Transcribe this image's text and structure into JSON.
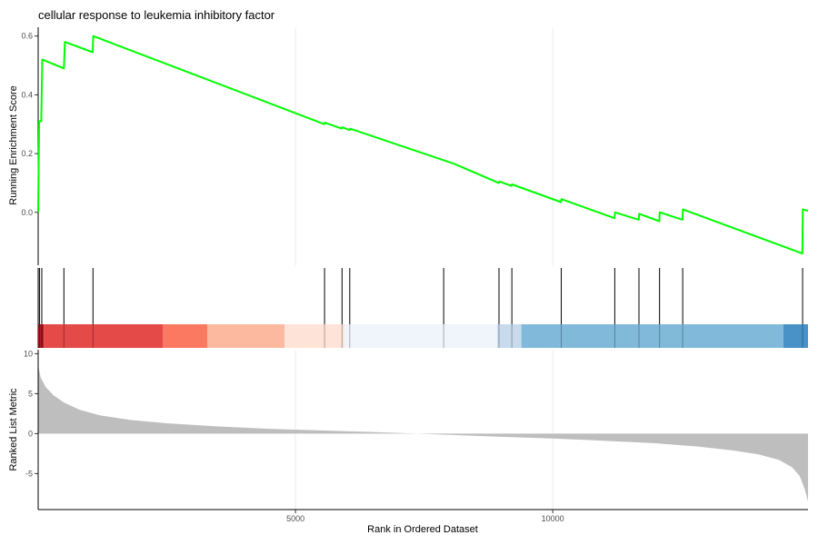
{
  "chart_data": {
    "type": "line",
    "title": "cellular response to leukemia inhibitory factor",
    "xlabel": "Rank in Ordered Dataset",
    "xlim": [
      0,
      14960
    ],
    "x_ticks": [
      5000,
      10000
    ],
    "x_tick_labels": [
      "5000",
      "10000"
    ],
    "grid": true,
    "panels": [
      {
        "name": "running-score",
        "ylabel": "Running Enrichment Score",
        "ylim": [
          -0.18,
          0.63
        ],
        "y_ticks": [
          0.0,
          0.2,
          0.4,
          0.6
        ],
        "y_tick_labels": [
          "0.0",
          "0.2",
          "0.4",
          "0.6"
        ],
        "line_color": "#00ff00",
        "points": [
          [
            0,
            0.0
          ],
          [
            20,
            0.31
          ],
          [
            60,
            0.31
          ],
          [
            80,
            0.52
          ],
          [
            500,
            0.49
          ],
          [
            520,
            0.58
          ],
          [
            1060,
            0.545
          ],
          [
            1070,
            0.6
          ],
          [
            5560,
            0.3
          ],
          [
            5570,
            0.305
          ],
          [
            5900,
            0.285
          ],
          [
            5910,
            0.29
          ],
          [
            6050,
            0.28
          ],
          [
            6060,
            0.285
          ],
          [
            8090,
            0.165
          ],
          [
            8950,
            0.1
          ],
          [
            8960,
            0.105
          ],
          [
            9200,
            0.09
          ],
          [
            9210,
            0.095
          ],
          [
            10160,
            0.035
          ],
          [
            10170,
            0.045
          ],
          [
            11200,
            -0.02
          ],
          [
            11210,
            0.0
          ],
          [
            11670,
            -0.025
          ],
          [
            11680,
            -0.005
          ],
          [
            12070,
            -0.03
          ],
          [
            12080,
            0.0
          ],
          [
            12520,
            -0.025
          ],
          [
            12530,
            0.01
          ],
          [
            14850,
            -0.14
          ],
          [
            14860,
            0.01
          ],
          [
            14960,
            0.005
          ]
        ]
      },
      {
        "name": "gene-hits",
        "hit_ranks": [
          25,
          70,
          500,
          1065,
          5565,
          5905,
          6055,
          7880,
          8955,
          9205,
          10165,
          11205,
          11675,
          12075,
          12525,
          14855
        ]
      },
      {
        "name": "rank-color-bar",
        "segments": [
          {
            "from": 0,
            "to": 110,
            "color": "#a50f15"
          },
          {
            "from": 110,
            "to": 2420,
            "color": "#e3403e"
          },
          {
            "from": 2420,
            "to": 3290,
            "color": "#fb7159"
          },
          {
            "from": 3290,
            "to": 4790,
            "color": "#fcb59b"
          },
          {
            "from": 4790,
            "to": 5950,
            "color": "#fee2d6"
          },
          {
            "from": 5950,
            "to": 8920,
            "color": "#eff3fb"
          },
          {
            "from": 8920,
            "to": 9390,
            "color": "#c4d9ec"
          },
          {
            "from": 9390,
            "to": 14480,
            "color": "#7ab5d9"
          },
          {
            "from": 14480,
            "to": 14960,
            "color": "#3f8cc4"
          }
        ]
      },
      {
        "name": "ranked-metric",
        "ylabel": "Ranked List Metric",
        "ylim": [
          -9.5,
          10.5
        ],
        "y_ticks": [
          -5,
          0,
          5,
          10
        ],
        "y_tick_labels": [
          "-5",
          "0",
          "5",
          "10"
        ],
        "fill_color": "#bebebe",
        "points": [
          [
            0,
            8.5
          ],
          [
            50,
            7.0
          ],
          [
            150,
            5.8
          ],
          [
            300,
            4.8
          ],
          [
            500,
            3.9
          ],
          [
            800,
            3.0
          ],
          [
            1200,
            2.3
          ],
          [
            1800,
            1.7
          ],
          [
            2500,
            1.3
          ],
          [
            3500,
            0.9
          ],
          [
            4500,
            0.6
          ],
          [
            5500,
            0.4
          ],
          [
            6500,
            0.2
          ],
          [
            7300,
            0.02
          ],
          [
            8000,
            -0.15
          ],
          [
            9000,
            -0.4
          ],
          [
            10000,
            -0.6
          ],
          [
            11000,
            -0.9
          ],
          [
            12000,
            -1.2
          ],
          [
            12800,
            -1.6
          ],
          [
            13500,
            -2.1
          ],
          [
            14000,
            -2.6
          ],
          [
            14400,
            -3.3
          ],
          [
            14650,
            -4.2
          ],
          [
            14800,
            -5.3
          ],
          [
            14900,
            -7.0
          ],
          [
            14960,
            -8.5
          ]
        ]
      }
    ]
  }
}
